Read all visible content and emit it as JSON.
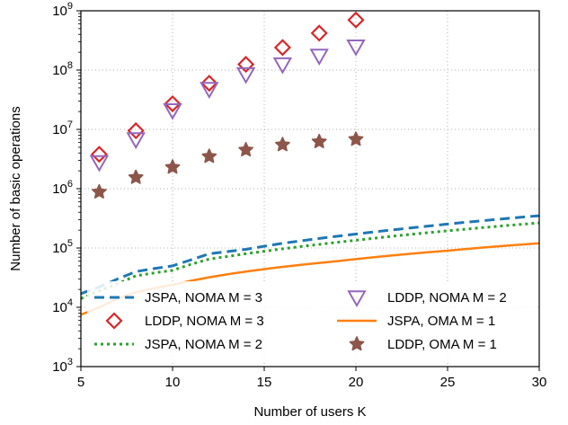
{
  "chart_data": {
    "type": "line",
    "title": "",
    "xlabel": "Number of users K",
    "ylabel": "Number of basic operations",
    "xlim": [
      5,
      30
    ],
    "ylim": [
      1000,
      1000000000
    ],
    "yscale": "log",
    "grid": true,
    "legend_position": "bottom-right",
    "x_ticks": [
      5,
      10,
      15,
      20,
      25,
      30
    ],
    "y_ticks": [
      1000,
      10000,
      100000,
      1000000,
      10000000,
      100000000,
      1000000000
    ],
    "y_tick_labels": [
      {
        "base": "10",
        "exp": "3"
      },
      {
        "base": "10",
        "exp": "4"
      },
      {
        "base": "10",
        "exp": "5"
      },
      {
        "base": "10",
        "exp": "6"
      },
      {
        "base": "10",
        "exp": "7"
      },
      {
        "base": "10",
        "exp": "8"
      },
      {
        "base": "10",
        "exp": "9"
      }
    ],
    "series": [
      {
        "name": "JSPA, NOMA M = 3",
        "style": "dashed-line",
        "color": "#1f77b4",
        "x": [
          5,
          6,
          7,
          8,
          9,
          10,
          11,
          12,
          13,
          14,
          15,
          16,
          17,
          18,
          19,
          20,
          21,
          22,
          23,
          24,
          25,
          26,
          27,
          28,
          29,
          30
        ],
        "values": [
          17000,
          22000,
          30000,
          40000,
          45000,
          50000,
          63000,
          80000,
          87000,
          95000,
          107000,
          120000,
          132000,
          145000,
          158000,
          172000,
          187000,
          202000,
          218000,
          235000,
          253000,
          272000,
          290000,
          310000,
          330000,
          350000
        ]
      },
      {
        "name": "LDDP, NOMA M = 3",
        "style": "diamond-markers",
        "color": "#d62728",
        "x": [
          6,
          8,
          10,
          12,
          14,
          16,
          18,
          20
        ],
        "values": [
          3800000,
          9500000,
          27000000,
          60000000,
          125000000,
          240000000,
          420000000,
          700000000
        ]
      },
      {
        "name": "JSPA, NOMA M = 2",
        "style": "dotted-line",
        "color": "#2ca02c",
        "x": [
          5,
          6,
          7,
          8,
          9,
          10,
          11,
          12,
          13,
          14,
          15,
          16,
          17,
          18,
          19,
          20,
          21,
          22,
          23,
          24,
          25,
          26,
          27,
          28,
          29,
          30
        ],
        "values": [
          14000,
          19000,
          25000,
          34000,
          38000,
          42000,
          53000,
          65000,
          72000,
          80000,
          88000,
          97000,
          106000,
          115000,
          125000,
          135000,
          146000,
          158000,
          170000,
          182000,
          195000,
          208000,
          222000,
          236000,
          250000,
          265000
        ]
      },
      {
        "name": "LDDP, NOMA M = 2",
        "style": "triangle-down-markers",
        "color": "#9467bd",
        "x": [
          6,
          8,
          10,
          12,
          14,
          16,
          18,
          20
        ],
        "values": [
          2800000,
          6800000,
          21000000,
          48000000,
          85000000,
          125000000,
          175000000,
          250000000
        ]
      },
      {
        "name": "JSPA, OMA M = 1",
        "style": "solid-line",
        "color": "#ff7f0e",
        "x": [
          5,
          6,
          7,
          8,
          9,
          10,
          11,
          12,
          13,
          14,
          15,
          16,
          17,
          18,
          19,
          20,
          21,
          22,
          23,
          24,
          25,
          26,
          27,
          28,
          29,
          30
        ],
        "values": [
          7500,
          10000,
          14000,
          18000,
          21000,
          24000,
          28000,
          32000,
          36000,
          40000,
          44000,
          48000,
          52000,
          56000,
          60000,
          65000,
          70000,
          75000,
          80000,
          85000,
          90000,
          96000,
          102000,
          108000,
          114000,
          120000
        ]
      },
      {
        "name": "LDDP, OMA M = 1",
        "style": "star-markers",
        "color": "#8c564b",
        "x": [
          6,
          8,
          10,
          12,
          14,
          16,
          18,
          20
        ],
        "values": [
          880000,
          1550000,
          2300000,
          3500000,
          4500000,
          5500000,
          6200000,
          6800000
        ]
      }
    ]
  }
}
